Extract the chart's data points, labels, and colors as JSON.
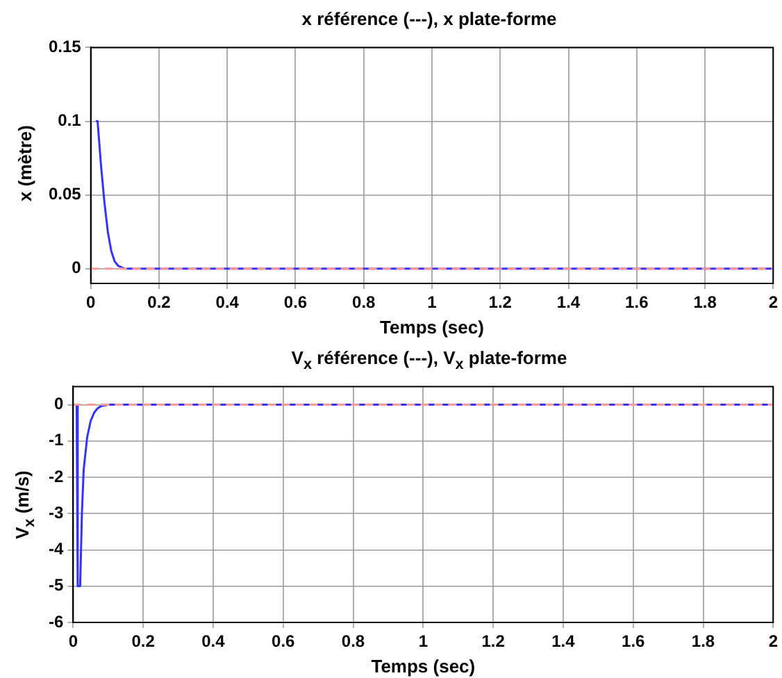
{
  "chart_data": [
    {
      "type": "line",
      "title": "x référence (---),  x plate-forme",
      "xlabel": "Temps (sec)",
      "ylabel": "x (mètre)",
      "xlim": [
        0,
        2
      ],
      "xticks": [
        0,
        0.2,
        0.4,
        0.6,
        0.8,
        1,
        1.2,
        1.4,
        1.6,
        1.8,
        2
      ],
      "ylim": [
        -0.01,
        0.15
      ],
      "yticks": [
        0,
        0.05,
        0.1,
        0.15
      ],
      "grid": true,
      "legend": false,
      "marker": "none",
      "series": [
        {
          "color": "#ff9999",
          "line_style": "dashed",
          "x": [
            0,
            2
          ],
          "values": [
            0,
            0
          ]
        },
        {
          "color": "#3333ff",
          "x": [
            0.015,
            0.02,
            0.025,
            0.03,
            0.04,
            0.05,
            0.06,
            0.07,
            0.08,
            0.1,
            2
          ],
          "values": [
            0.1,
            0.1,
            0.085,
            0.07,
            0.045,
            0.025,
            0.012,
            0.005,
            0.002,
            0,
            0
          ]
        }
      ]
    },
    {
      "type": "line",
      "title": "V$_{x}$ référence (---),  V$_{x}$ plate-forme",
      "xlabel": "Temps (sec)",
      "ylabel": "V$_{x}$ (m/s)",
      "xlim": [
        0,
        2
      ],
      "xticks": [
        0,
        0.2,
        0.4,
        0.6,
        0.8,
        1,
        1.2,
        1.4,
        1.6,
        1.8,
        2
      ],
      "ylim": [
        -6,
        0.5
      ],
      "yticks": [
        -6,
        -5,
        -4,
        -3,
        -2,
        -1,
        0
      ],
      "grid": true,
      "legend": false,
      "marker": "none",
      "series": [
        {
          "color": "#ff9999",
          "line_style": "dashed",
          "x": [
            0,
            2
          ],
          "values": [
            0,
            0
          ]
        },
        {
          "color": "#3333ff",
          "x": [
            0.01,
            0.013,
            0.02,
            0.025,
            0.03,
            0.04,
            0.05,
            0.06,
            0.07,
            0.08,
            0.1,
            2
          ],
          "values": [
            0,
            -5,
            -5,
            -3,
            -1.8,
            -0.9,
            -0.45,
            -0.22,
            -0.1,
            -0.04,
            0,
            0
          ]
        }
      ]
    }
  ]
}
